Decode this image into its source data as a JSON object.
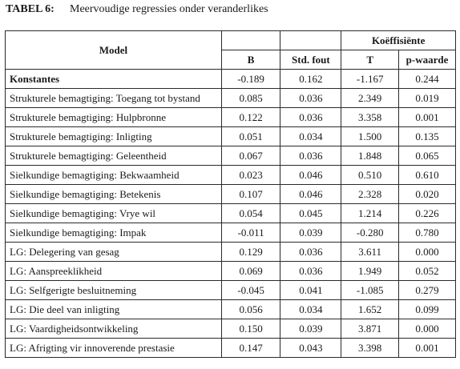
{
  "caption": {
    "label": "TABEL 6:",
    "title": "Meervoudige regressies onder veranderlikes"
  },
  "table": {
    "header": {
      "model": "Model",
      "group": "Koëffisiënte",
      "cols": [
        "B",
        "Std. fout",
        "T",
        "p-waarde"
      ]
    },
    "rows": [
      {
        "name": "Konstantes",
        "bold": true,
        "values": [
          "-0.189",
          "0.162",
          "-1.167",
          "0.244"
        ]
      },
      {
        "name": "Strukturele bemagtiging: Toegang tot bystand",
        "bold": false,
        "values": [
          "0.085",
          "0.036",
          "2.349",
          "0.019"
        ]
      },
      {
        "name": "Strukturele bemagtiging: Hulpbronne",
        "bold": false,
        "values": [
          "0.122",
          "0.036",
          "3.358",
          "0.001"
        ]
      },
      {
        "name": "Strukturele bemagtiging: Inligting",
        "bold": false,
        "values": [
          "0.051",
          "0.034",
          "1.500",
          "0.135"
        ]
      },
      {
        "name": "Strukturele bemagtiging: Geleentheid",
        "bold": false,
        "values": [
          "0.067",
          "0.036",
          "1.848",
          "0.065"
        ]
      },
      {
        "name": "Sielkundige bemagtiging: Bekwaamheid",
        "bold": false,
        "values": [
          "0.023",
          "0.046",
          "0.510",
          "0.610"
        ]
      },
      {
        "name": "Sielkundige bemagtiging: Betekenis",
        "bold": false,
        "values": [
          "0.107",
          "0.046",
          "2.328",
          "0.020"
        ]
      },
      {
        "name": "Sielkundige bemagtiging: Vrye wil",
        "bold": false,
        "values": [
          "0.054",
          "0.045",
          "1.214",
          "0.226"
        ]
      },
      {
        "name": "Sielkundige bemagtiging: Impak",
        "bold": false,
        "values": [
          "-0.011",
          "0.039",
          "-0.280",
          "0.780"
        ]
      },
      {
        "name": "LG: Delegering van gesag",
        "bold": false,
        "values": [
          "0.129",
          "0.036",
          "3.611",
          "0.000"
        ]
      },
      {
        "name": "LG: Aanspreeklikheid",
        "bold": false,
        "values": [
          "0.069",
          "0.036",
          "1.949",
          "0.052"
        ]
      },
      {
        "name": "LG: Selfgerigte besluitneming",
        "bold": false,
        "values": [
          "-0.045",
          "0.041",
          "-1.085",
          "0.279"
        ]
      },
      {
        "name": "LG: Die deel van inligting",
        "bold": false,
        "values": [
          "0.056",
          "0.034",
          "1.652",
          "0.099"
        ]
      },
      {
        "name": "LG: Vaardigheidsontwikkeling",
        "bold": false,
        "values": [
          "0.150",
          "0.039",
          "3.871",
          "0.000"
        ]
      },
      {
        "name": "LG: Afrigting vir innoverende prestasie",
        "bold": false,
        "values": [
          "0.147",
          "0.043",
          "3.398",
          "0.001"
        ]
      }
    ]
  }
}
